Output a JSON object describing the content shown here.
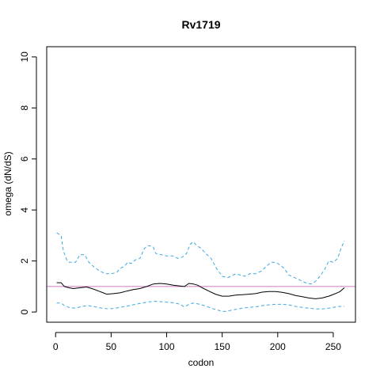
{
  "chart_data": {
    "type": "line",
    "title": "Rv1719",
    "xlabel": "codon",
    "ylabel": "omega (dN/dS)",
    "xlim": [
      -8,
      270
    ],
    "ylim": [
      -0.4,
      10.4
    ],
    "xticks": [
      0,
      50,
      100,
      150,
      200,
      250
    ],
    "yticks": [
      0,
      2,
      4,
      6,
      8,
      10
    ],
    "grid": false,
    "reference_line": {
      "y": 1,
      "color": "#cc79c0"
    },
    "series": [
      {
        "role": "upper",
        "color": "#3fa7e0",
        "style": "dashed",
        "x": [
          1,
          5,
          7,
          10,
          12,
          18,
          22,
          26,
          30,
          35,
          40,
          45,
          50,
          55,
          58,
          62,
          65,
          68,
          72,
          76,
          78,
          80,
          84,
          88,
          90,
          95,
          100,
          106,
          110,
          114,
          118,
          121,
          124,
          127,
          131,
          135,
          140,
          145,
          150,
          155,
          158,
          162,
          166,
          170,
          175,
          180,
          185,
          190,
          194,
          198,
          202,
          206,
          210,
          215,
          220,
          225,
          230,
          234,
          238,
          242,
          246,
          250,
          254,
          257,
          260
        ],
        "y": [
          3.1,
          3.0,
          2.4,
          2.05,
          1.95,
          1.95,
          2.25,
          2.25,
          1.95,
          1.75,
          1.6,
          1.5,
          1.5,
          1.55,
          1.7,
          1.8,
          1.95,
          1.9,
          2.05,
          2.1,
          2.3,
          2.5,
          2.6,
          2.55,
          2.3,
          2.25,
          2.2,
          2.2,
          2.1,
          2.15,
          2.3,
          2.65,
          2.75,
          2.6,
          2.5,
          2.3,
          2.1,
          1.7,
          1.4,
          1.35,
          1.4,
          1.5,
          1.45,
          1.4,
          1.5,
          1.5,
          1.6,
          1.8,
          1.95,
          1.95,
          1.85,
          1.7,
          1.45,
          1.35,
          1.25,
          1.15,
          1.1,
          1.2,
          1.4,
          1.65,
          2.0,
          1.95,
          2.1,
          2.5,
          2.8
        ]
      },
      {
        "role": "mean",
        "color": "#000000",
        "style": "solid",
        "x": [
          1,
          5,
          8,
          12,
          16,
          22,
          28,
          34,
          40,
          46,
          52,
          58,
          64,
          70,
          76,
          82,
          88,
          94,
          100,
          106,
          112,
          116,
          120,
          124,
          128,
          132,
          138,
          144,
          150,
          156,
          162,
          168,
          174,
          180,
          186,
          192,
          198,
          204,
          210,
          216,
          222,
          228,
          234,
          240,
          246,
          252,
          256,
          260
        ],
        "y": [
          1.15,
          1.15,
          1.0,
          0.95,
          0.92,
          0.95,
          0.98,
          0.9,
          0.8,
          0.7,
          0.72,
          0.75,
          0.82,
          0.88,
          0.92,
          1.0,
          1.1,
          1.12,
          1.1,
          1.05,
          1.02,
          1.0,
          1.12,
          1.1,
          1.05,
          0.95,
          0.82,
          0.7,
          0.62,
          0.62,
          0.66,
          0.68,
          0.7,
          0.72,
          0.78,
          0.8,
          0.8,
          0.77,
          0.72,
          0.65,
          0.6,
          0.55,
          0.52,
          0.55,
          0.62,
          0.72,
          0.8,
          0.95
        ]
      },
      {
        "role": "lower",
        "color": "#3fa7e0",
        "style": "dashed",
        "x": [
          1,
          5,
          8,
          12,
          18,
          24,
          30,
          36,
          42,
          48,
          54,
          60,
          66,
          72,
          78,
          84,
          90,
          96,
          102,
          108,
          112,
          116,
          120,
          124,
          130,
          136,
          142,
          148,
          152,
          156,
          162,
          168,
          174,
          180,
          186,
          192,
          198,
          204,
          210,
          216,
          222,
          228,
          234,
          240,
          246,
          252,
          256,
          260
        ],
        "y": [
          0.35,
          0.35,
          0.25,
          0.18,
          0.15,
          0.22,
          0.25,
          0.2,
          0.15,
          0.12,
          0.15,
          0.2,
          0.25,
          0.3,
          0.35,
          0.4,
          0.42,
          0.4,
          0.38,
          0.35,
          0.3,
          0.2,
          0.3,
          0.35,
          0.3,
          0.22,
          0.12,
          0.05,
          0.02,
          0.05,
          0.1,
          0.15,
          0.18,
          0.2,
          0.25,
          0.28,
          0.3,
          0.3,
          0.28,
          0.22,
          0.18,
          0.15,
          0.12,
          0.12,
          0.15,
          0.2,
          0.22,
          0.22
        ]
      }
    ]
  }
}
